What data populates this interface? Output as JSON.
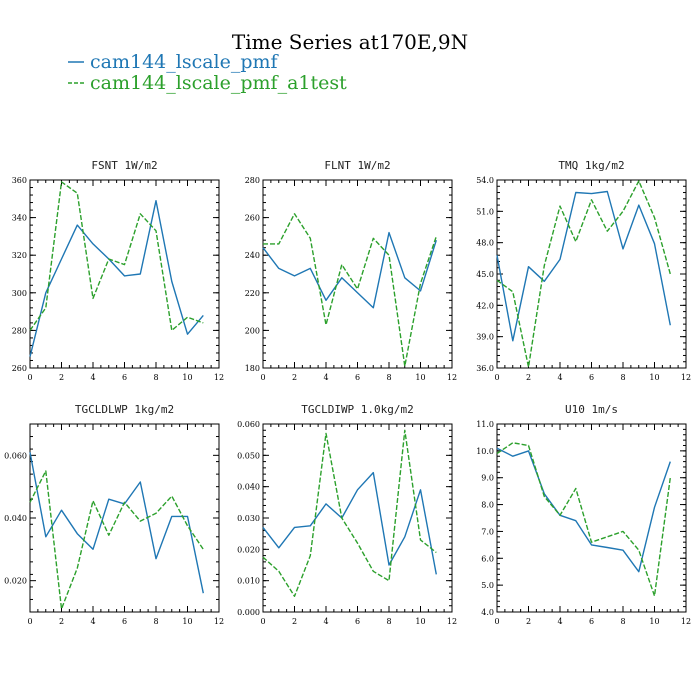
{
  "figure_title": "Time Series at170E,9N",
  "legend": [
    {
      "label": "cam144_lscale_pmf",
      "color": "#1f77b4",
      "dash": "solid"
    },
    {
      "label": "cam144_lscale_pmf_a1test",
      "color": "#2ca02c",
      "dash": "dashed"
    }
  ],
  "chart_data": [
    {
      "type": "line",
      "title": "FSNT   1W/m2",
      "xlim": [
        0,
        12
      ],
      "xticks": [
        "0",
        "2",
        "4",
        "6",
        "8",
        "10",
        "12"
      ],
      "ylim": [
        260,
        360
      ],
      "yticks": [
        "260",
        "280",
        "300",
        "320",
        "340",
        "360"
      ],
      "x": [
        0,
        1,
        2,
        3,
        4,
        5,
        6,
        7,
        8,
        9,
        10,
        11
      ],
      "series": [
        {
          "name": "cam144_lscale_pmf",
          "values": [
            266,
            300,
            318,
            336,
            326,
            318,
            309,
            310,
            349,
            306,
            278,
            288
          ]
        },
        {
          "name": "cam144_lscale_pmf_a1test",
          "values": [
            280,
            292,
            359,
            353,
            297,
            318,
            315,
            342,
            333,
            280,
            287,
            284
          ]
        }
      ]
    },
    {
      "type": "line",
      "title": "FLNT   1W/m2",
      "xlim": [
        0,
        12
      ],
      "xticks": [
        "0",
        "2",
        "4",
        "6",
        "8",
        "10",
        "12"
      ],
      "ylim": [
        180,
        280
      ],
      "yticks": [
        "180",
        "200",
        "220",
        "240",
        "260",
        "280"
      ],
      "x": [
        0,
        1,
        2,
        3,
        4,
        5,
        6,
        7,
        8,
        9,
        10,
        11
      ],
      "series": [
        {
          "name": "cam144_lscale_pmf",
          "values": [
            244,
            233,
            229,
            233,
            216,
            228,
            220,
            212,
            252,
            228,
            221,
            248
          ]
        },
        {
          "name": "cam144_lscale_pmf_a1test",
          "values": [
            246,
            246,
            262,
            249,
            203,
            235,
            222,
            249,
            240,
            181,
            225,
            250
          ]
        }
      ]
    },
    {
      "type": "line",
      "title": "TMQ   1kg/m2",
      "xlim": [
        0,
        12
      ],
      "xticks": [
        "0",
        "2",
        "4",
        "6",
        "8",
        "10",
        "12"
      ],
      "ylim": [
        36.0,
        54.0
      ],
      "yticks": [
        "36.0",
        "39.0",
        "42.0",
        "45.0",
        "48.0",
        "51.0",
        "54.0"
      ],
      "x": [
        0,
        1,
        2,
        3,
        4,
        5,
        6,
        7,
        8,
        9,
        10,
        11
      ],
      "series": [
        {
          "name": "cam144_lscale_pmf",
          "values": [
            46.8,
            38.6,
            45.7,
            44.3,
            46.4,
            52.8,
            52.7,
            52.9,
            47.4,
            51.6,
            47.9,
            40.1
          ]
        },
        {
          "name": "cam144_lscale_pmf_a1test",
          "values": [
            44.4,
            43.3,
            36.1,
            45.8,
            51.5,
            48.1,
            52.1,
            49.1,
            51.0,
            53.9,
            50.4,
            45.0
          ]
        }
      ]
    },
    {
      "type": "line",
      "title": "TGCLDLWP   1kg/m2",
      "xlim": [
        0,
        12
      ],
      "xticks": [
        "0",
        "2",
        "4",
        "6",
        "8",
        "10",
        "12"
      ],
      "ylim": [
        0.01,
        0.07
      ],
      "yticks": [
        "0.020",
        "0.040",
        "0.060"
      ],
      "ytick_values": [
        0.02,
        0.04,
        0.06
      ],
      "x": [
        0,
        1,
        2,
        3,
        4,
        5,
        6,
        7,
        8,
        9,
        10,
        11
      ],
      "series": [
        {
          "name": "cam144_lscale_pmf",
          "values": [
            0.061,
            0.034,
            0.0425,
            0.035,
            0.03,
            0.046,
            0.0445,
            0.0515,
            0.027,
            0.0405,
            0.0405,
            0.016
          ]
        },
        {
          "name": "cam144_lscale_pmf_a1test",
          "values": [
            0.045,
            0.055,
            0.011,
            0.024,
            0.0455,
            0.0345,
            0.045,
            0.039,
            0.0415,
            0.047,
            0.0375,
            0.03
          ]
        }
      ]
    },
    {
      "type": "line",
      "title": "TGCLDIWP   1.0kg/m2",
      "xlim": [
        0,
        12
      ],
      "xticks": [
        "0",
        "2",
        "4",
        "6",
        "8",
        "10",
        "12"
      ],
      "ylim": [
        0.0,
        0.06
      ],
      "yticks": [
        "0.000",
        "0.010",
        "0.020",
        "0.030",
        "0.040",
        "0.050",
        "0.060"
      ],
      "x": [
        0,
        1,
        2,
        3,
        4,
        5,
        6,
        7,
        8,
        9,
        10,
        11
      ],
      "series": [
        {
          "name": "cam144_lscale_pmf",
          "values": [
            0.027,
            0.0205,
            0.027,
            0.0275,
            0.0345,
            0.03,
            0.039,
            0.0445,
            0.015,
            0.024,
            0.039,
            0.012
          ]
        },
        {
          "name": "cam144_lscale_pmf_a1test",
          "values": [
            0.0175,
            0.013,
            0.005,
            0.018,
            0.057,
            0.03,
            0.022,
            0.013,
            0.01,
            0.058,
            0.023,
            0.019
          ]
        }
      ]
    },
    {
      "type": "line",
      "title": "U10   1m/s",
      "xlim": [
        0,
        12
      ],
      "xticks": [
        "0",
        "2",
        "4",
        "6",
        "8",
        "10",
        "12"
      ],
      "ylim": [
        4.0,
        11.0
      ],
      "yticks": [
        "4.0",
        "5.0",
        "6.0",
        "7.0",
        "8.0",
        "9.0",
        "10.0",
        "11.0"
      ],
      "x": [
        0,
        1,
        2,
        3,
        4,
        5,
        6,
        7,
        8,
        9,
        10,
        11
      ],
      "series": [
        {
          "name": "cam144_lscale_pmf",
          "values": [
            10.1,
            9.8,
            10.0,
            8.4,
            7.6,
            7.4,
            6.5,
            6.4,
            6.3,
            5.5,
            7.9,
            9.6
          ]
        },
        {
          "name": "cam144_lscale_pmf_a1test",
          "values": [
            9.9,
            10.3,
            10.2,
            8.3,
            7.6,
            8.6,
            6.6,
            6.8,
            7.0,
            6.3,
            4.6,
            9.0
          ]
        }
      ]
    }
  ]
}
